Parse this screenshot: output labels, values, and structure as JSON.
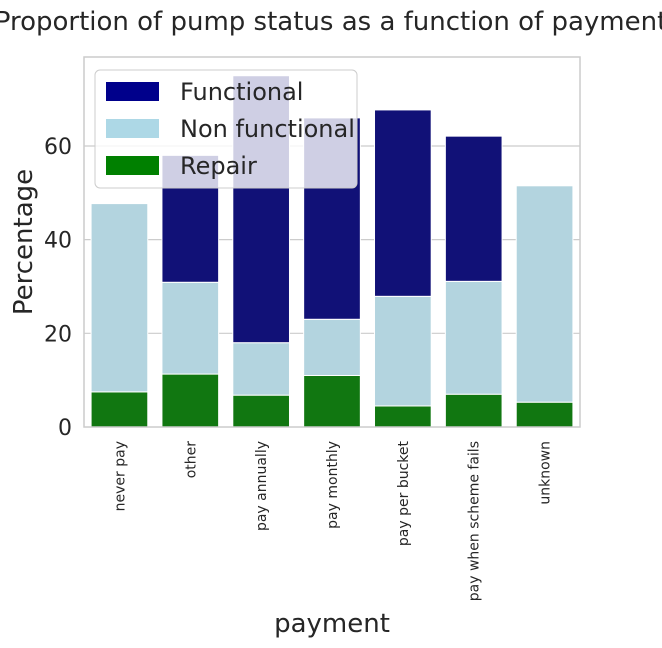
{
  "chart_data": {
    "type": "bar",
    "stacked": true,
    "title": "Proportion of pump status as a function of payment",
    "xlabel": "payment",
    "ylabel": "Percentage",
    "ylim": [
      0,
      79
    ],
    "yticks": [
      0,
      20,
      40,
      60
    ],
    "grid": true,
    "legend_position": "upper-left",
    "categories": [
      "never pay",
      "other",
      "pay annually",
      "pay monthly",
      "pay per bucket",
      "pay when scheme fails",
      "unknown"
    ],
    "series": [
      {
        "name": "Repair",
        "color": "#117711",
        "legend_color": "#008000",
        "values": [
          7.5,
          11.3,
          6.8,
          11.0,
          4.5,
          7.0,
          5.3
        ]
      },
      {
        "name": "Non functional",
        "color": "#b3d4df",
        "legend_color": "#add8e6",
        "values": [
          40.2,
          19.6,
          11.2,
          12.0,
          23.4,
          24.1,
          46.2
        ]
      },
      {
        "name": "Functional",
        "color": "#111177",
        "legend_color": "#00008b",
        "values": [
          0,
          27.1,
          57.0,
          43.0,
          39.8,
          31.0,
          0
        ]
      }
    ]
  }
}
